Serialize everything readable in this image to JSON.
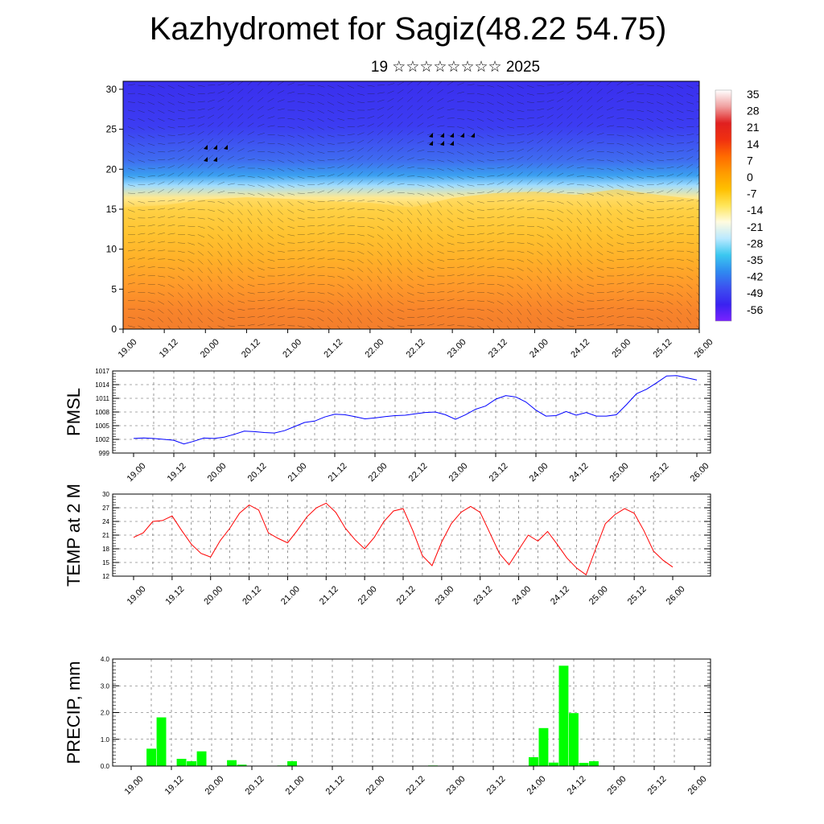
{
  "title": "Kazhydromet for Sagiz(48.22 54.75)",
  "subtitle": "19 ☆☆☆☆☆☆☆☆ 2025",
  "x_tick_labels": [
    "19.00",
    "19.12",
    "20.00",
    "20.12",
    "21.00",
    "21.12",
    "22.00",
    "22.12",
    "23.00",
    "23.12",
    "24.00",
    "24.12",
    "25.00",
    "25.12",
    "26.00"
  ],
  "chart_data": [
    {
      "type": "heatmap",
      "name": "vertical temperature cross-section with wind barbs",
      "ylim": [
        0,
        31
      ],
      "y_ticks": [
        0,
        5,
        10,
        15,
        20,
        25,
        30
      ],
      "colorbar": {
        "labels": [
          "35",
          "28",
          "21",
          "14",
          "7",
          "0",
          "-7",
          "-14",
          "-21",
          "-28",
          "-35",
          "-42",
          "-49",
          "-56"
        ],
        "colors": [
          "#ffffff",
          "#f0a0a0",
          "#e02020",
          "#f03010",
          "#ff6a00",
          "#ff9a00",
          "#ffc000",
          "#ffe65a",
          "#fffbe0",
          "#b9e9ff",
          "#3bc8f0",
          "#2f8af0",
          "#3c50f0",
          "#3a22f0",
          "#7a22ff"
        ]
      },
      "freezing_level_top_km": [
        15.2,
        15.5,
        16.2,
        16.5,
        16.3,
        16.0,
        15.8,
        15.2,
        16.4,
        17.0,
        17.2,
        16.8,
        17.5,
        16.8,
        16.2
      ]
    },
    {
      "type": "line",
      "ylabel": "PMSL",
      "ylim": [
        999,
        1017
      ],
      "y_tick_labels": [
        "999",
        "1002",
        "1005",
        "1008",
        "1011",
        "1014",
        "1017"
      ],
      "color": "#0000ff",
      "x": [
        0,
        1,
        2,
        3,
        4,
        5,
        6,
        7,
        8,
        9,
        10,
        11,
        12,
        13,
        14,
        15,
        16,
        17,
        18,
        19,
        20,
        21,
        22,
        23,
        24,
        25,
        26,
        27,
        28,
        29,
        30,
        31,
        32,
        33,
        34,
        35,
        36,
        37,
        38,
        39,
        40,
        41,
        42,
        43,
        44,
        45,
        46,
        47,
        48,
        49,
        50,
        51,
        52,
        53,
        54,
        55,
        56
      ],
      "values": [
        1002.2,
        1002.3,
        1002.2,
        1002.0,
        1001.8,
        1001.0,
        1001.6,
        1002.3,
        1002.2,
        1002.5,
        1003.1,
        1003.8,
        1003.7,
        1003.5,
        1003.4,
        1003.9,
        1004.8,
        1005.7,
        1006.0,
        1006.9,
        1007.5,
        1007.4,
        1007.0,
        1006.5,
        1006.7,
        1007.0,
        1007.2,
        1007.3,
        1007.6,
        1007.9,
        1008.0,
        1007.4,
        1006.4,
        1007.4,
        1008.6,
        1009.3,
        1010.8,
        1011.6,
        1011.3,
        1010.2,
        1008.4,
        1007.1,
        1007.2,
        1008.1,
        1007.3,
        1007.9,
        1007.1,
        1007.1,
        1007.4,
        1009.6,
        1012.0,
        1013.0,
        1014.4,
        1015.9,
        1016.0,
        1015.5,
        1015.0
      ]
    },
    {
      "type": "line",
      "ylabel": "TEMP at 2 M",
      "ylim": [
        12,
        30
      ],
      "y_tick_labels": [
        "12",
        "15",
        "18",
        "21",
        "24",
        "27",
        "30"
      ],
      "color": "#ff0000",
      "x": [
        0,
        1,
        2,
        3,
        4,
        5,
        6,
        7,
        8,
        9,
        10,
        11,
        12,
        13,
        14,
        15,
        16,
        17,
        18,
        19,
        20,
        21,
        22,
        23,
        24,
        25,
        26,
        27,
        28,
        29,
        30,
        31,
        32,
        33,
        34,
        35,
        36,
        37,
        38,
        39,
        40,
        41,
        42,
        43,
        44,
        45,
        46,
        47,
        48,
        49,
        50,
        51,
        52,
        53,
        54,
        55,
        56
      ],
      "values": [
        20.5,
        21.5,
        24.0,
        24.2,
        25.2,
        22.0,
        19.0,
        17.0,
        16.2,
        19.8,
        22.5,
        25.8,
        27.6,
        26.5,
        21.5,
        20.3,
        19.3,
        22.0,
        25.0,
        27.0,
        28.0,
        26.0,
        22.5,
        20.0,
        18.0,
        20.5,
        24.0,
        26.3,
        26.8,
        22.0,
        16.5,
        14.3,
        19.5,
        23.5,
        26.0,
        27.3,
        26.0,
        21.5,
        17.0,
        14.5,
        17.8,
        21.0,
        19.7,
        21.8,
        19.0,
        16.0,
        13.8,
        12.3,
        18.0,
        23.5,
        25.5,
        26.8,
        25.8,
        22.0,
        17.5,
        15.5,
        14.0
      ]
    },
    {
      "type": "bar",
      "ylabel": "PRECIP, mm",
      "ylim": [
        0,
        4
      ],
      "y_tick_labels": [
        "0.0",
        "1.0",
        "2.0",
        "3.0",
        "4.0"
      ],
      "color": "#00ff00",
      "x": [
        0,
        1,
        2,
        3,
        4,
        5,
        6,
        7,
        8,
        9,
        10,
        11,
        12,
        13,
        14,
        15,
        16,
        17,
        18,
        19,
        20,
        21,
        22,
        23,
        24,
        25,
        26,
        27,
        28,
        29,
        30,
        31,
        32,
        33,
        34,
        35,
        36,
        37,
        38,
        39,
        40,
        41,
        42,
        43,
        44,
        45,
        46,
        47,
        48,
        49,
        50,
        51,
        52,
        53,
        54,
        55,
        56
      ],
      "values": [
        0,
        0,
        0.65,
        1.82,
        0,
        0.27,
        0.18,
        0.55,
        0,
        0,
        0.22,
        0.05,
        0,
        0,
        0,
        0.02,
        0.18,
        0,
        0,
        0,
        0,
        0,
        0,
        0,
        0,
        0,
        0,
        0,
        0,
        0,
        0.02,
        0,
        0,
        0,
        0,
        0,
        0,
        0,
        0,
        0,
        0.33,
        1.42,
        0.13,
        3.75,
        1.98,
        0.12,
        0.18,
        0,
        0,
        0,
        0,
        0,
        0,
        0,
        0,
        0,
        0
      ]
    }
  ]
}
